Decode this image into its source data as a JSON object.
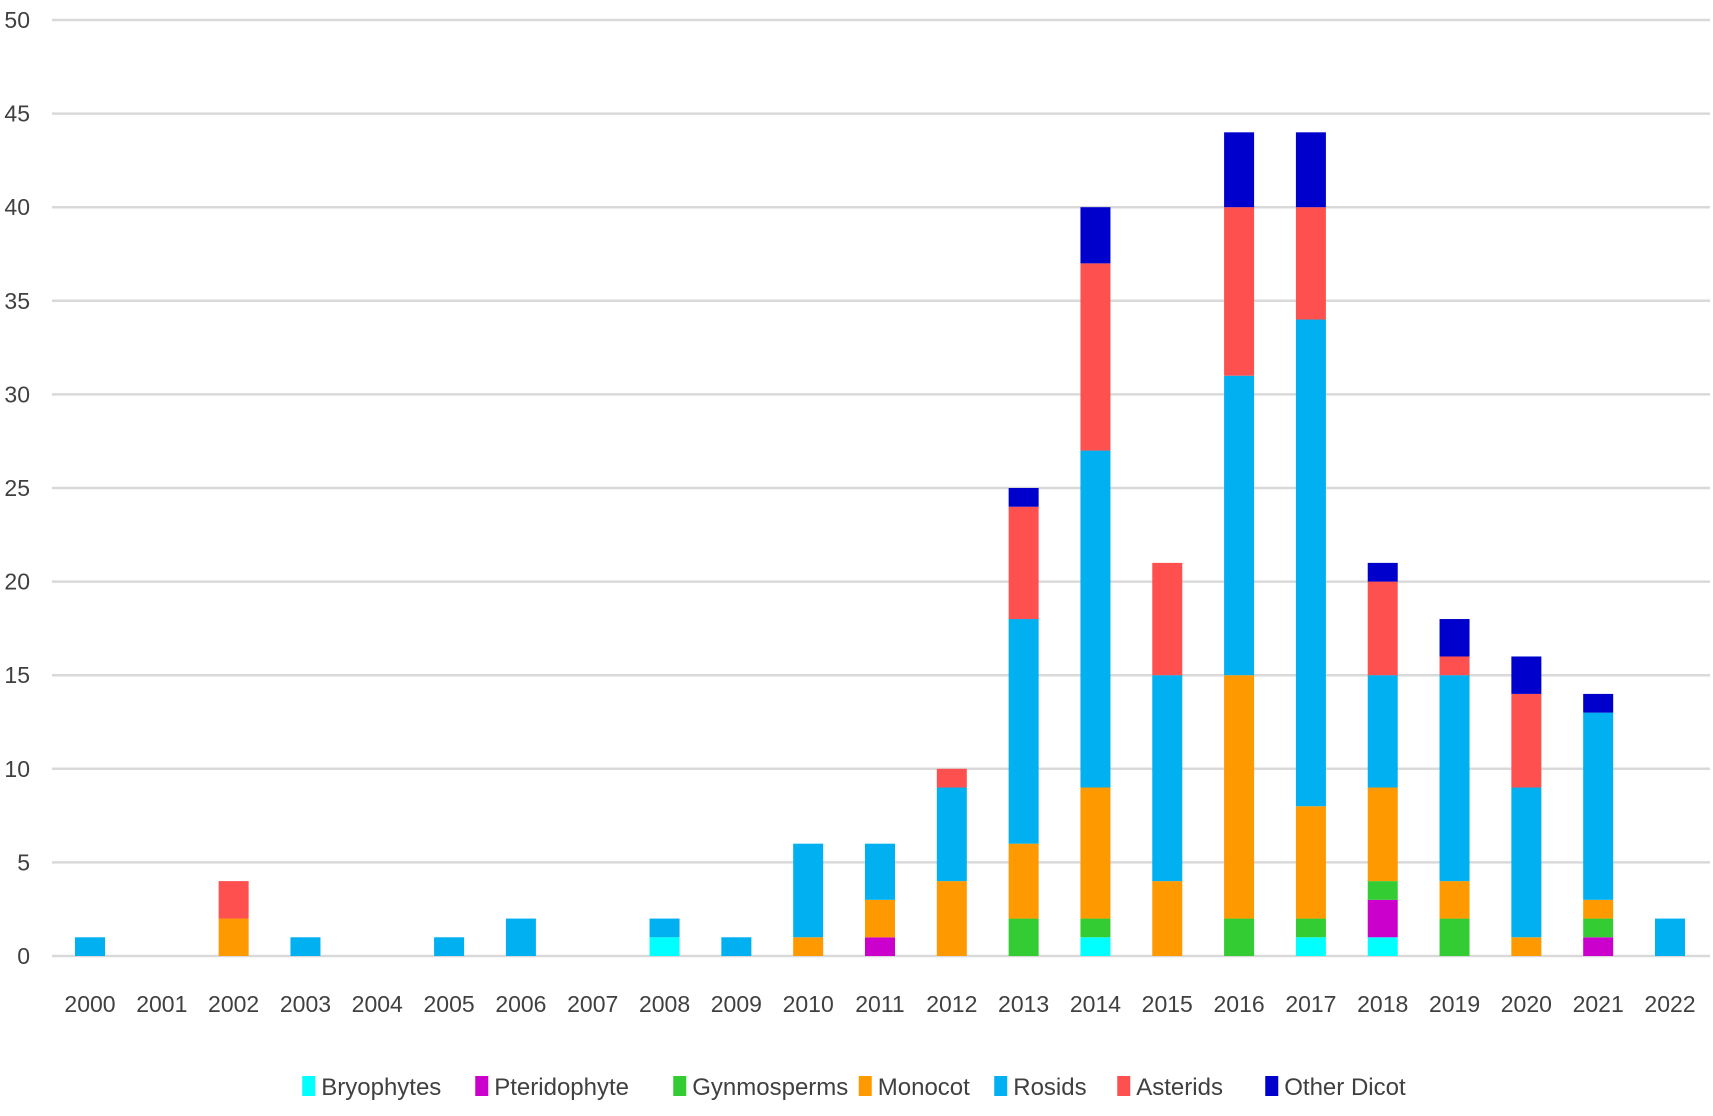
{
  "chart_data": {
    "type": "bar",
    "stacked": true,
    "title": "",
    "xlabel": "",
    "ylabel": "",
    "ylim": [
      0,
      50
    ],
    "yticks": [
      0,
      5,
      10,
      15,
      20,
      25,
      30,
      35,
      40,
      45,
      50
    ],
    "grid": true,
    "legend_position": "bottom",
    "categories": [
      "2000",
      "2001",
      "2002",
      "2003",
      "2004",
      "2005",
      "2006",
      "2007",
      "2008",
      "2009",
      "2010",
      "2011",
      "2012",
      "2013",
      "2014",
      "2015",
      "2016",
      "2017",
      "2018",
      "2019",
      "2020",
      "2021",
      "2022"
    ],
    "series": [
      {
        "name": "Bryophytes",
        "color": "#00FFFF",
        "values": [
          0,
          0,
          0,
          0,
          0,
          0,
          0,
          0,
          1,
          0,
          0,
          0,
          0,
          0,
          1,
          0,
          0,
          1,
          1,
          0,
          0,
          0,
          0
        ]
      },
      {
        "name": "Pteridophyte",
        "color": "#CC00CC",
        "values": [
          0,
          0,
          0,
          0,
          0,
          0,
          0,
          0,
          0,
          0,
          0,
          1,
          0,
          0,
          0,
          0,
          0,
          0,
          2,
          0,
          0,
          1,
          0
        ]
      },
      {
        "name": "Gynmosperms",
        "color": "#33CC33",
        "values": [
          0,
          0,
          0,
          0,
          0,
          0,
          0,
          0,
          0,
          0,
          0,
          0,
          0,
          2,
          1,
          0,
          2,
          1,
          1,
          2,
          0,
          1,
          0
        ]
      },
      {
        "name": "Monocot",
        "color": "#FF9900",
        "values": [
          0,
          0,
          2,
          0,
          0,
          0,
          0,
          0,
          0,
          0,
          1,
          2,
          4,
          4,
          7,
          4,
          13,
          6,
          5,
          2,
          1,
          1,
          0
        ]
      },
      {
        "name": "Rosids",
        "color": "#00B0F0",
        "values": [
          1,
          0,
          0,
          1,
          0,
          1,
          2,
          0,
          1,
          1,
          5,
          3,
          5,
          12,
          18,
          11,
          16,
          26,
          6,
          11,
          8,
          10,
          2
        ]
      },
      {
        "name": "Asterids",
        "color": "#FF5050",
        "values": [
          0,
          0,
          2,
          0,
          0,
          0,
          0,
          0,
          0,
          0,
          0,
          0,
          1,
          6,
          10,
          6,
          9,
          6,
          5,
          1,
          5,
          0,
          0
        ]
      },
      {
        "name": "Other Dicot",
        "color": "#0000CC",
        "values": [
          0,
          0,
          0,
          0,
          0,
          0,
          0,
          0,
          0,
          0,
          0,
          0,
          0,
          1,
          3,
          0,
          4,
          4,
          1,
          2,
          2,
          1,
          0
        ]
      }
    ]
  }
}
